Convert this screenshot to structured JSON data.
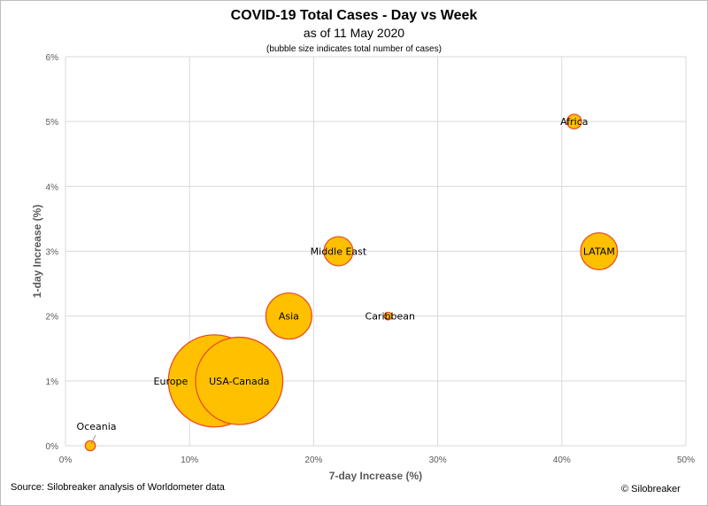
{
  "title": "COVID-19 Total Cases - Day vs Week",
  "subtitle": "as of 11 May 2020",
  "note": "(bubble size indicates total number of cases)",
  "source": "Source: Silobreaker analysis of Worldometer data",
  "copyright": "© Silobreaker",
  "colors": {
    "bubble_fill": "#FFC000",
    "bubble_stroke": "#E8461E",
    "grid": "#d9d9d9"
  },
  "chart_data": {
    "type": "bubble",
    "title": "COVID-19 Total Cases - Day vs Week",
    "xlabel": "7-day Increase (%)",
    "ylabel": "1-day Increase (%)",
    "xlim": [
      0,
      50
    ],
    "ylim": [
      0,
      6
    ],
    "x_ticks": [
      "0%",
      "10%",
      "20%",
      "30%",
      "40%",
      "50%"
    ],
    "y_ticks": [
      "0%",
      "1%",
      "2%",
      "3%",
      "4%",
      "5%",
      "6%"
    ],
    "grid": true,
    "points": [
      {
        "label": "Oceania",
        "x": 2,
        "y": 0,
        "size": 0.12,
        "label_pos": "above-left"
      },
      {
        "label": "Europe",
        "x": 12,
        "y": 1,
        "size": 10,
        "label_pos": "left"
      },
      {
        "label": "USA-Canada",
        "x": 14,
        "y": 1,
        "size": 9,
        "label_pos": "center"
      },
      {
        "label": "Asia",
        "x": 18,
        "y": 2,
        "size": 2.5,
        "label_pos": "center"
      },
      {
        "label": "Middle East",
        "x": 22,
        "y": 3,
        "size": 1.0,
        "label_pos": "center"
      },
      {
        "label": "Caribbean",
        "x": 26,
        "y": 2,
        "size": 0.07,
        "label_pos": "right"
      },
      {
        "label": "Africa",
        "x": 41,
        "y": 5,
        "size": 0.25,
        "label_pos": "center"
      },
      {
        "label": "LATAM",
        "x": 43,
        "y": 3,
        "size": 1.6,
        "label_pos": "center"
      }
    ]
  }
}
